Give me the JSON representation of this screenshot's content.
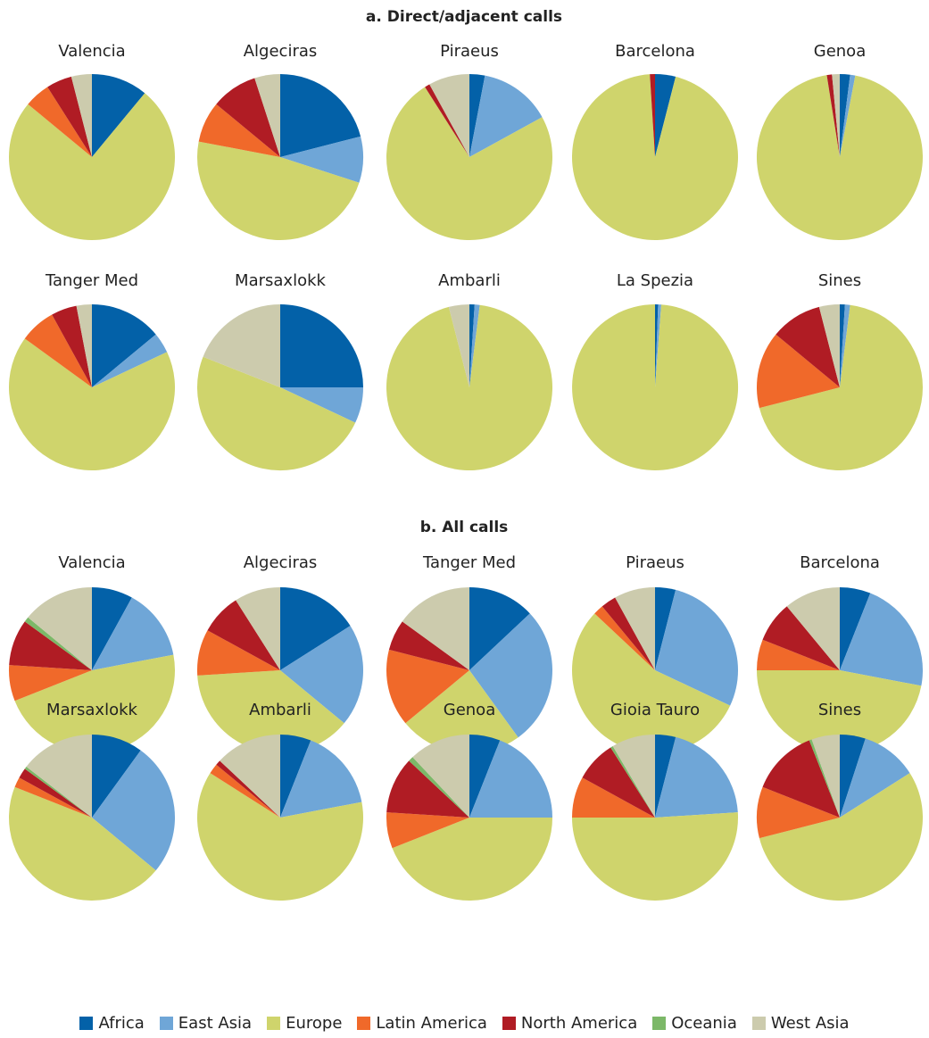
{
  "categories": [
    "Africa",
    "East Asia",
    "Europe",
    "Latin America",
    "North America",
    "Oceania",
    "West Asia"
  ],
  "colors": {
    "Africa": "#0361a8",
    "East Asia": "#6fa6d7",
    "Europe": "#cfd46c",
    "Latin America": "#f0692a",
    "North America": "#b01c24",
    "Oceania": "#7cb868",
    "West Asia": "#cccbad"
  },
  "chart_data": [
    {
      "type": "pie",
      "title": "a. Direct/adjacent calls",
      "charts": [
        {
          "name": "Valencia",
          "values": {
            "Africa": 11,
            "East Asia": 0,
            "Europe": 75,
            "Latin America": 5,
            "North America": 5,
            "Oceania": 0,
            "West Asia": 4
          }
        },
        {
          "name": "Algeciras",
          "values": {
            "Africa": 21,
            "East Asia": 9,
            "Europe": 48,
            "Latin America": 8,
            "North America": 9,
            "Oceania": 0,
            "West Asia": 5
          }
        },
        {
          "name": "Piraeus",
          "values": {
            "Africa": 3,
            "East Asia": 14,
            "Europe": 74,
            "Latin America": 0,
            "North America": 1,
            "Oceania": 0,
            "West Asia": 8
          }
        },
        {
          "name": "Barcelona",
          "values": {
            "Africa": 4,
            "East Asia": 0,
            "Europe": 95,
            "Latin America": 0,
            "North America": 1,
            "Oceania": 0,
            "West Asia": 0
          }
        },
        {
          "name": "Genoa",
          "values": {
            "Africa": 2,
            "East Asia": 1,
            "Europe": 94.5,
            "Latin America": 0,
            "North America": 1,
            "Oceania": 0,
            "West Asia": 1.5
          }
        },
        {
          "name": "Tanger Med",
          "values": {
            "Africa": 14,
            "East Asia": 4,
            "Europe": 67,
            "Latin America": 7,
            "North America": 5,
            "Oceania": 0,
            "West Asia": 3
          }
        },
        {
          "name": "Marsaxlokk",
          "values": {
            "Africa": 25,
            "East Asia": 7,
            "Europe": 49,
            "Latin America": 0,
            "North America": 0,
            "Oceania": 0,
            "West Asia": 19
          }
        },
        {
          "name": "Ambarli",
          "values": {
            "Africa": 1,
            "East Asia": 1,
            "Europe": 94,
            "Latin America": 0,
            "North America": 0,
            "Oceania": 0,
            "West Asia": 4
          }
        },
        {
          "name": "La Spezia",
          "values": {
            "Africa": 0.6,
            "East Asia": 0.6,
            "Europe": 98.8,
            "Latin America": 0,
            "North America": 0,
            "Oceania": 0,
            "West Asia": 0
          }
        },
        {
          "name": "Sines",
          "values": {
            "Africa": 1,
            "East Asia": 1,
            "Europe": 69,
            "Latin America": 15,
            "North America": 10,
            "Oceania": 0,
            "West Asia": 4
          }
        }
      ]
    },
    {
      "type": "pie",
      "title": "b. All calls",
      "charts": [
        {
          "name": "Valencia",
          "values": {
            "Africa": 8,
            "East Asia": 14,
            "Europe": 47,
            "Latin America": 7,
            "North America": 9,
            "Oceania": 1,
            "West Asia": 14
          }
        },
        {
          "name": "Algeciras",
          "values": {
            "Africa": 16,
            "East Asia": 20,
            "Europe": 38,
            "Latin America": 9,
            "North America": 8,
            "Oceania": 0,
            "West Asia": 9
          }
        },
        {
          "name": "Tanger Med",
          "values": {
            "Africa": 13,
            "East Asia": 27,
            "Europe": 24,
            "Latin America": 15,
            "North America": 6,
            "Oceania": 0,
            "West Asia": 15
          }
        },
        {
          "name": "Piraeus",
          "values": {
            "Africa": 4,
            "East Asia": 28,
            "Europe": 55,
            "Latin America": 2,
            "North America": 3,
            "Oceania": 0,
            "West Asia": 8
          }
        },
        {
          "name": "Barcelona",
          "values": {
            "Africa": 6,
            "East Asia": 22,
            "Europe": 47,
            "Latin America": 6,
            "North America": 8,
            "Oceania": 0,
            "West Asia": 11
          }
        },
        {
          "name": "Marsaxlokk",
          "values": {
            "Africa": 10,
            "East Asia": 26,
            "Europe": 45,
            "Latin America": 2,
            "North America": 2,
            "Oceania": 0.5,
            "West Asia": 14.5
          }
        },
        {
          "name": "Ambarli",
          "values": {
            "Africa": 6,
            "East Asia": 16,
            "Europe": 62,
            "Latin America": 2,
            "North America": 1,
            "Oceania": 0,
            "West Asia": 13
          }
        },
        {
          "name": "Genoa",
          "values": {
            "Africa": 6,
            "East Asia": 19,
            "Europe": 44,
            "Latin America": 7,
            "North America": 11,
            "Oceania": 1,
            "West Asia": 12
          }
        },
        {
          "name": "Gioia Tauro",
          "values": {
            "Africa": 4,
            "East Asia": 20,
            "Europe": 51,
            "Latin America": 8,
            "North America": 8,
            "Oceania": 0.5,
            "West Asia": 8.5
          }
        },
        {
          "name": "Sines",
          "values": {
            "Africa": 5,
            "East Asia": 11,
            "Europe": 55,
            "Latin America": 10,
            "North America": 13,
            "Oceania": 0.5,
            "West Asia": 5.5
          }
        }
      ]
    }
  ]
}
